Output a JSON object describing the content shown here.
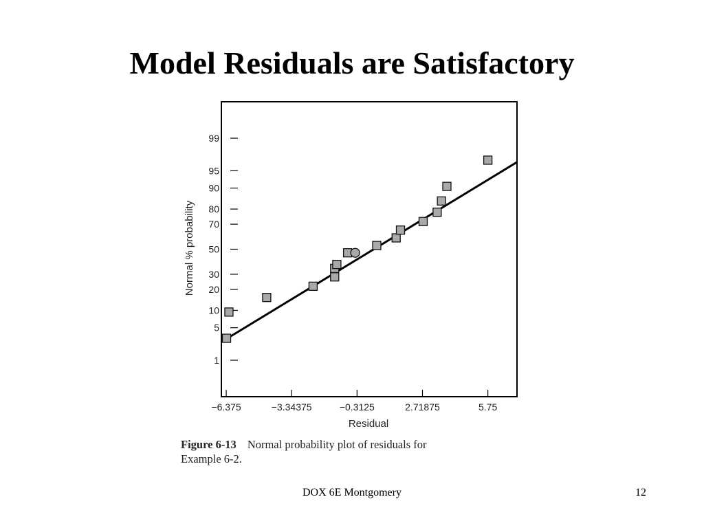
{
  "slide": {
    "title": "Model Residuals are Satisfactory",
    "footer_center": "DOX 6E Montgomery",
    "page_number": "12"
  },
  "figure": {
    "label": "Figure 6-13",
    "caption_line1": "Normal probability plot of residuals for",
    "caption_line2": "Example 6-2."
  },
  "chart_data": {
    "type": "scatter",
    "title": "",
    "xlabel": "Residual",
    "ylabel": "Normal % probability",
    "x_ticks": [
      {
        "value": -6.375,
        "label": "−6.375"
      },
      {
        "value": -3.34375,
        "label": "−3.34375"
      },
      {
        "value": -0.3125,
        "label": "−0.3125"
      },
      {
        "value": 2.71875,
        "label": "2.71875"
      },
      {
        "value": 5.75,
        "label": "5.75"
      }
    ],
    "y_ticks": [
      {
        "value": 1,
        "label": "1"
      },
      {
        "value": 5,
        "label": "5"
      },
      {
        "value": 10,
        "label": "10"
      },
      {
        "value": 20,
        "label": "20"
      },
      {
        "value": 30,
        "label": "30"
      },
      {
        "value": 50,
        "label": "50"
      },
      {
        "value": 70,
        "label": "70"
      },
      {
        "value": 80,
        "label": "80"
      },
      {
        "value": 90,
        "label": "90"
      },
      {
        "value": 95,
        "label": "95"
      },
      {
        "value": 99,
        "label": "99"
      }
    ],
    "y_scale": "normal-probability",
    "xlim": [
      -6.6,
      7.1
    ],
    "ylim": [
      0.1,
      99.9
    ],
    "grid": false,
    "points": [
      {
        "x": -6.36,
        "y": 3.1,
        "marker": "square"
      },
      {
        "x": -6.25,
        "y": 9.4,
        "marker": "square"
      },
      {
        "x": -4.5,
        "y": 15.6,
        "marker": "square"
      },
      {
        "x": -2.35,
        "y": 21.9,
        "marker": "square"
      },
      {
        "x": -1.35,
        "y": 28.1,
        "marker": "square"
      },
      {
        "x": -1.35,
        "y": 34.4,
        "marker": "square"
      },
      {
        "x": -1.25,
        "y": 37.5,
        "marker": "square"
      },
      {
        "x": -0.75,
        "y": 47.0,
        "marker": "square"
      },
      {
        "x": -0.4,
        "y": 47.0,
        "marker": "circle"
      },
      {
        "x": 0.6,
        "y": 53.1,
        "marker": "square"
      },
      {
        "x": 1.5,
        "y": 59.4,
        "marker": "square"
      },
      {
        "x": 1.7,
        "y": 65.6,
        "marker": "square"
      },
      {
        "x": 2.75,
        "y": 71.9,
        "marker": "square"
      },
      {
        "x": 3.4,
        "y": 78.1,
        "marker": "square"
      },
      {
        "x": 3.6,
        "y": 84.4,
        "marker": "square"
      },
      {
        "x": 3.85,
        "y": 90.6,
        "marker": "square"
      },
      {
        "x": 5.75,
        "y": 96.9,
        "marker": "square"
      }
    ],
    "fit_line": [
      {
        "x": -6.6,
        "y": 2.6
      },
      {
        "x": 7.1,
        "y": 96.6
      }
    ]
  }
}
